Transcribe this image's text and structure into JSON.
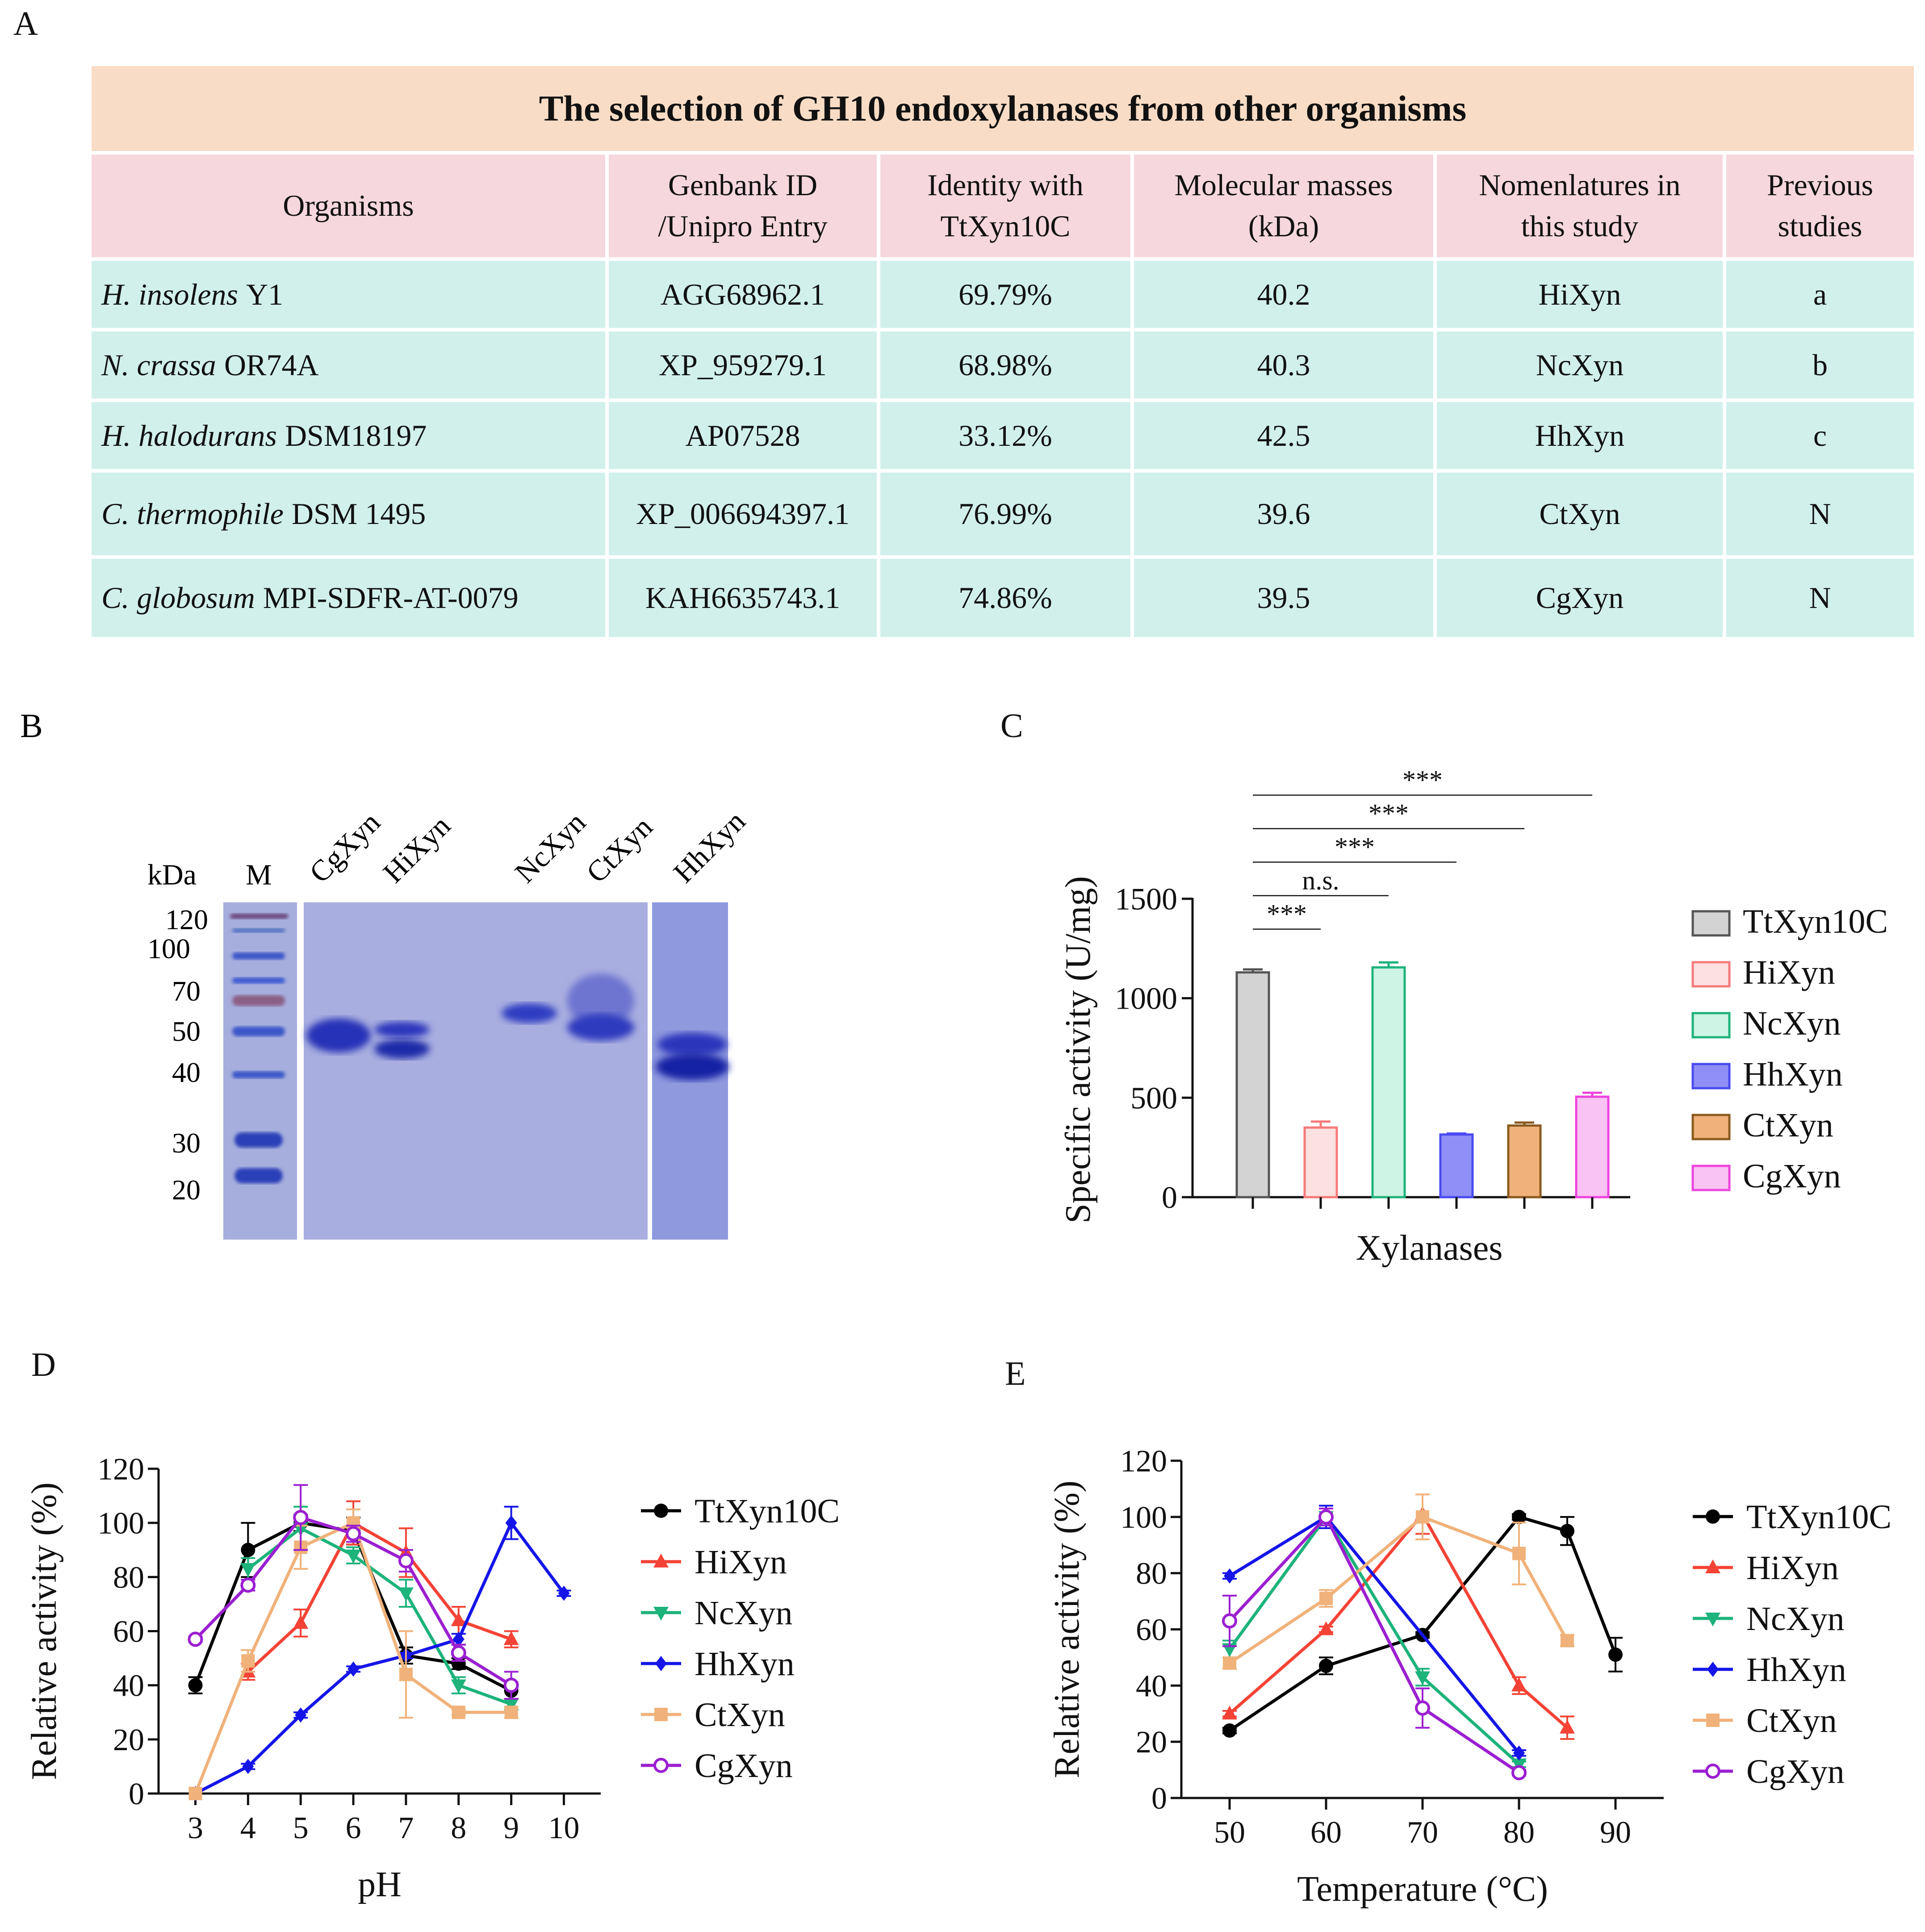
{
  "panel_labels": {
    "a": "A",
    "b": "B",
    "c": "C",
    "d": "D",
    "e": "E"
  },
  "table": {
    "caption": "The selection of GH10 endoxylanases from other organisms",
    "headers": [
      "Organisms",
      "Genbank ID\n/Unipro Entry",
      "Identity with\nTtXyn10C",
      "Molecular masses\n(kDa)",
      "Nomenlatures in\nthis study",
      "Previous\nstudies"
    ],
    "rows": [
      {
        "species": "H. insolens",
        "strain": "Y1",
        "id": "AGG68962.1",
        "identity": "69.79%",
        "mass": "40.2",
        "name": "HiXyn",
        "prev": "a"
      },
      {
        "species": "N. crassa",
        "strain": "OR74A",
        "id": "XP_959279.1",
        "identity": "68.98%",
        "mass": "40.3",
        "name": "NcXyn",
        "prev": "b"
      },
      {
        "species": "H. halodurans",
        "strain": "DSM18197",
        "id": "AP07528",
        "identity": "33.12%",
        "mass": "42.5",
        "name": "HhXyn",
        "prev": "c"
      },
      {
        "species": "C. thermophile",
        "strain": "DSM 1495",
        "id": "XP_006694397.1",
        "identity": "76.99%",
        "mass": "39.6",
        "name": "CtXyn",
        "prev": "N"
      },
      {
        "species": "C. globosum",
        "strain": "MPI-SDFR-AT-0079",
        "id": "KAH6635743.1",
        "identity": "74.86%",
        "mass": "39.5",
        "name": "CgXyn",
        "prev": "N"
      }
    ]
  },
  "gel": {
    "unit_label": "kDa",
    "marker_label": "M",
    "marker_kda": [
      "120",
      "100",
      "70",
      "50",
      "40",
      "30",
      "20"
    ],
    "lane_labels": [
      "CgXyn",
      "HiXyn",
      "NcXyn",
      "CtXyn",
      "HhXyn"
    ]
  },
  "colors": {
    "TtXyn10C": "#000000",
    "HiXyn": "#f44336",
    "NcXyn": "#1db37a",
    "HhXyn": "#1515e8",
    "CtXyn": "#f0b27a",
    "CgXyn": "#9b1fd1"
  },
  "bar_colors": {
    "TtXyn10C": {
      "edge": "#555555",
      "fill": "#d3d3d3"
    },
    "HiXyn": {
      "edge": "#f47a7a",
      "fill": "#fde1e1"
    },
    "NcXyn": {
      "edge": "#1db37a",
      "fill": "#cdf4e4"
    },
    "HhXyn": {
      "edge": "#4a4af0",
      "fill": "#8f8ff7"
    },
    "CtXyn": {
      "edge": "#8a5a20",
      "fill": "#f0b27a"
    },
    "CgXyn": {
      "edge": "#ee44dd",
      "fill": "#f9c3f3"
    }
  },
  "chart_data": [
    {
      "panel": "C",
      "type": "bar",
      "categories": [
        "TtXyn10C",
        "HiXyn",
        "NcXyn",
        "HhXyn",
        "CtXyn",
        "CgXyn"
      ],
      "values": [
        1130,
        350,
        1155,
        315,
        360,
        505
      ],
      "errors": [
        15,
        30,
        25,
        5,
        15,
        20
      ],
      "title": "",
      "xlabel": "Xylanases",
      "ylabel": "Specific activity (U/mg)",
      "ylim": [
        0,
        1500
      ],
      "yticks": [
        0,
        500,
        1000,
        1500
      ],
      "legend": [
        "TtXyn10C",
        "HiXyn",
        "NcXyn",
        "HhXyn",
        "CtXyn",
        "CgXyn"
      ],
      "legend_position": "right",
      "significance": [
        {
          "from": "TtXyn10C",
          "to": "HiXyn",
          "label": "***"
        },
        {
          "from": "TtXyn10C",
          "to": "NcXyn",
          "label": "n.s."
        },
        {
          "from": "TtXyn10C",
          "to": "HhXyn",
          "label": "***"
        },
        {
          "from": "TtXyn10C",
          "to": "CtXyn",
          "label": "***"
        },
        {
          "from": "TtXyn10C",
          "to": "CgXyn",
          "label": "***"
        }
      ]
    },
    {
      "panel": "D",
      "type": "line",
      "xlabel": "pH",
      "ylabel": "Relative activity (%)",
      "xlim": [
        2.3,
        10.7
      ],
      "ylim": [
        0,
        120
      ],
      "xticks": [
        3,
        4,
        5,
        6,
        7,
        8,
        9,
        10
      ],
      "yticks": [
        0,
        20,
        40,
        60,
        80,
        100,
        120
      ],
      "legend_position": "right",
      "series": [
        {
          "name": "TtXyn10C",
          "marker": "circle",
          "x": [
            3,
            4,
            5,
            6,
            7,
            8,
            9
          ],
          "y": [
            40,
            90,
            100,
            97,
            51,
            48,
            38
          ],
          "err": [
            3,
            10,
            3,
            5,
            3,
            2,
            3
          ]
        },
        {
          "name": "HiXyn",
          "marker": "triangle-up",
          "x": [
            4,
            5,
            6,
            7,
            8,
            9
          ],
          "y": [
            45,
            63,
            100,
            89,
            64,
            57
          ],
          "err": [
            3,
            5,
            8,
            9,
            5,
            3
          ]
        },
        {
          "name": "NcXyn",
          "marker": "triangle-down",
          "x": [
            4,
            5,
            6,
            7,
            8,
            9
          ],
          "y": [
            83,
            98,
            88,
            74,
            40,
            33
          ],
          "err": [
            4,
            8,
            3,
            5,
            3,
            2
          ]
        },
        {
          "name": "HhXyn",
          "marker": "diamond",
          "x": [
            3,
            4,
            5,
            6,
            7,
            8,
            9,
            10
          ],
          "y": [
            0,
            10,
            29,
            46,
            51,
            57,
            100,
            74
          ],
          "err": [
            0,
            1,
            1,
            1,
            1,
            2,
            6,
            1
          ]
        },
        {
          "name": "CtXyn",
          "marker": "square",
          "x": [
            3,
            4,
            5,
            6,
            7,
            8,
            9
          ],
          "y": [
            0,
            49,
            91,
            100,
            44,
            30,
            30
          ],
          "err": [
            0,
            4,
            8,
            5,
            16,
            1,
            2
          ]
        },
        {
          "name": "CgXyn",
          "marker": "circle-open",
          "x": [
            3,
            4,
            5,
            6,
            7,
            8,
            9
          ],
          "y": [
            57,
            77,
            102,
            96,
            86,
            52,
            40
          ],
          "err": [
            1,
            2,
            12,
            3,
            4,
            3,
            5
          ]
        }
      ]
    },
    {
      "panel": "E",
      "type": "line",
      "xlabel": "Temperature (°C)",
      "ylabel": "Relative activity (%)",
      "xlim": [
        45,
        95
      ],
      "ylim": [
        0,
        120
      ],
      "xticks": [
        50,
        60,
        70,
        80,
        90
      ],
      "yticks": [
        0,
        20,
        40,
        60,
        80,
        100,
        120
      ],
      "legend_position": "right",
      "series": [
        {
          "name": "TtXyn10C",
          "marker": "circle",
          "x": [
            50,
            60,
            70,
            80,
            85,
            90
          ],
          "y": [
            24,
            47,
            58,
            100,
            95,
            51
          ],
          "err": [
            1,
            3,
            1,
            1,
            5,
            6
          ]
        },
        {
          "name": "HiXyn",
          "marker": "triangle-up",
          "x": [
            50,
            60,
            70,
            80,
            85
          ],
          "y": [
            30,
            60,
            101,
            40,
            25
          ],
          "err": [
            1,
            1,
            7,
            3,
            4
          ]
        },
        {
          "name": "NcXyn",
          "marker": "triangle-down",
          "x": [
            50,
            60,
            70,
            80
          ],
          "y": [
            53,
            100,
            43,
            12
          ],
          "err": [
            3,
            3,
            3,
            1
          ]
        },
        {
          "name": "HhXyn",
          "marker": "diamond",
          "x": [
            50,
            60,
            80
          ],
          "y": [
            79,
            100,
            16
          ],
          "err": [
            1,
            4,
            1
          ]
        },
        {
          "name": "CtXyn",
          "marker": "square",
          "x": [
            50,
            60,
            70,
            80,
            85
          ],
          "y": [
            48,
            71,
            100,
            87,
            56
          ],
          "err": [
            2,
            3,
            8,
            11,
            2
          ]
        },
        {
          "name": "CgXyn",
          "marker": "circle-open",
          "x": [
            50,
            60,
            70,
            80
          ],
          "y": [
            63,
            100,
            32,
            9
          ],
          "err": [
            9,
            3,
            7,
            1
          ]
        }
      ]
    }
  ]
}
